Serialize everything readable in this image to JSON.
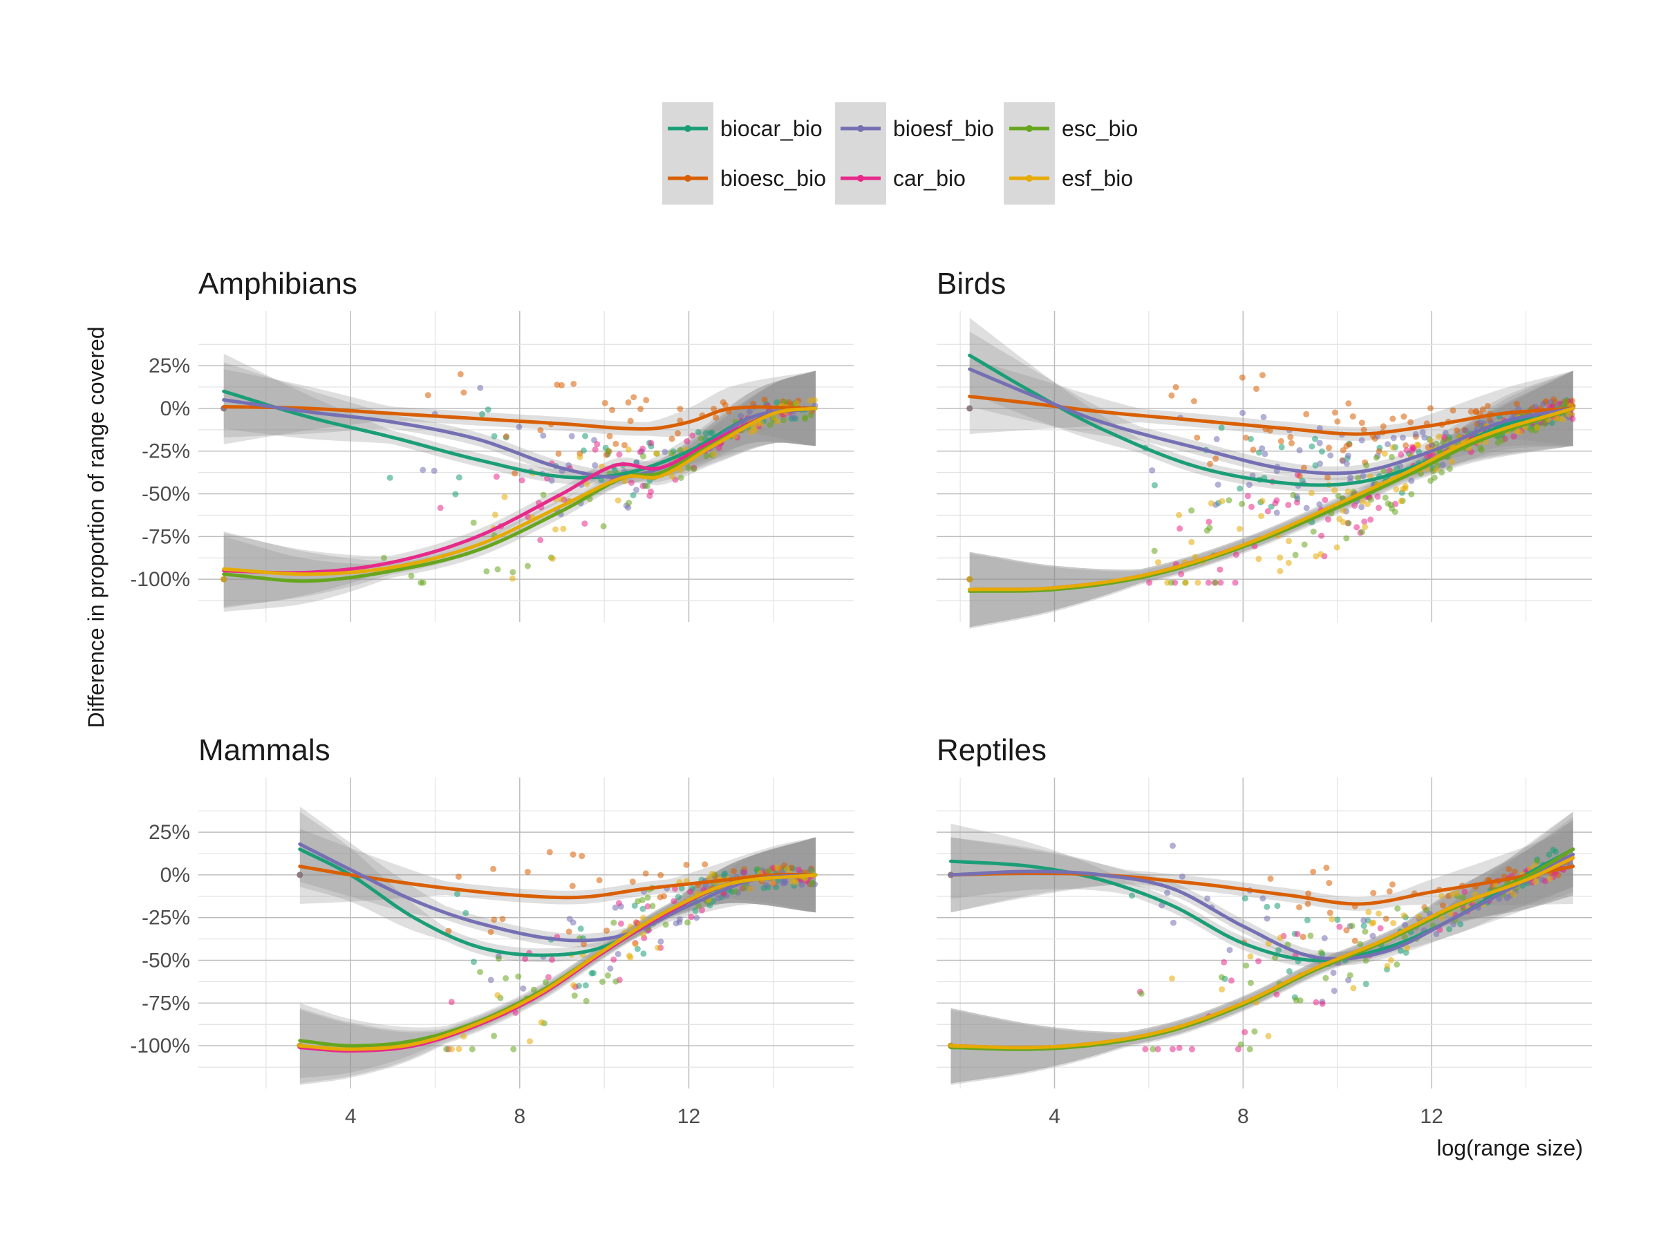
{
  "chart_data": {
    "type": "scatter",
    "ylabel": "Difference in proportion of range covered",
    "xlabel": "log(range size)",
    "x_ticks": [
      4,
      8,
      12
    ],
    "x_tick_labels": [
      "4",
      "8",
      "12"
    ],
    "y_ticks": [
      -100,
      -75,
      -50,
      -25,
      0,
      25
    ],
    "y_tick_labels": [
      "-100%",
      "-75%",
      "-50%",
      "-25%",
      "0%",
      "25%"
    ],
    "legend": {
      "position": "top",
      "entries": [
        {
          "name": "biocar_bio",
          "color": "#1b9e77"
        },
        {
          "name": "bioesc_bio",
          "color": "#d95f02"
        },
        {
          "name": "bioesf_bio",
          "color": "#7570b3"
        },
        {
          "name": "car_bio",
          "color": "#e7298a"
        },
        {
          "name": "esc_bio",
          "color": "#66a61e"
        },
        {
          "name": "esf_bio",
          "color": "#e6ab02"
        }
      ]
    },
    "grid": true,
    "panels": [
      {
        "title": "Amphibians",
        "xlim": [
          0.4,
          15.9
        ],
        "ylim": [
          -125,
          57
        ],
        "series": [
          {
            "name": "biocar_bio",
            "x": [
              1,
              3,
              5,
              7,
              9,
              10.5,
              12,
              13.5,
              15
            ],
            "y": [
              10,
              -5,
              -17,
              -30,
              -40,
              -38,
              -25,
              -5,
              0
            ]
          },
          {
            "name": "bioesc_bio",
            "x": [
              1,
              3,
              5,
              7,
              9,
              11,
              12,
              13,
              15
            ],
            "y": [
              1,
              0,
              -3,
              -6,
              -9,
              -12,
              -8,
              0,
              0
            ]
          },
          {
            "name": "bioesf_bio",
            "x": [
              1,
              3,
              5,
              7,
              9,
              10.5,
              12,
              13.5,
              15
            ],
            "y": [
              5,
              -2,
              -8,
              -18,
              -35,
              -40,
              -28,
              -5,
              0
            ]
          },
          {
            "name": "car_bio",
            "x": [
              1,
              3,
              5,
              7,
              9,
              10.3,
              11.3,
              12.5,
              14,
              15
            ],
            "y": [
              -95,
              -96,
              -90,
              -75,
              -50,
              -33,
              -35,
              -20,
              -3,
              0
            ]
          },
          {
            "name": "esc_bio",
            "x": [
              1,
              3,
              5,
              7,
              9,
              10.5,
              11.3,
              12.5,
              14,
              15
            ],
            "y": [
              -97,
              -101,
              -95,
              -83,
              -60,
              -40,
              -38,
              -22,
              -3,
              0
            ]
          },
          {
            "name": "esf_bio",
            "x": [
              1,
              3,
              5,
              7,
              9,
              10.5,
              11.3,
              12.5,
              14,
              15
            ],
            "y": [
              -94,
              -97,
              -93,
              -80,
              -57,
              -40,
              -40,
              -23,
              -3,
              0
            ]
          }
        ]
      },
      {
        "title": "Birds",
        "xlim": [
          1.5,
          15.4
        ],
        "ylim": [
          -125,
          57
        ],
        "series": [
          {
            "name": "biocar_bio",
            "x": [
              2.2,
              3.5,
              5,
              7,
              9,
              10.5,
              12,
              13.5,
              15
            ],
            "y": [
              31,
              10,
              -12,
              -34,
              -44,
              -43,
              -30,
              -10,
              0
            ]
          },
          {
            "name": "bioesc_bio",
            "x": [
              2.2,
              3.5,
              5,
              7,
              9,
              10.5,
              12,
              13.5,
              15
            ],
            "y": [
              7,
              3,
              -2,
              -7,
              -12,
              -15,
              -10,
              -3,
              0
            ]
          },
          {
            "name": "bioesf_bio",
            "x": [
              2.2,
              3.5,
              5,
              7,
              9,
              10.5,
              12,
              13.5,
              15
            ],
            "y": [
              23,
              8,
              -8,
              -23,
              -36,
              -37,
              -25,
              -8,
              0
            ]
          },
          {
            "name": "car_bio",
            "x": [
              2.2,
              4,
              6,
              8,
              10,
              11.5,
              13,
              15
            ],
            "y": [
              -106,
              -105,
              -97,
              -80,
              -57,
              -38,
              -18,
              0
            ]
          },
          {
            "name": "esc_bio",
            "x": [
              2.2,
              4,
              6,
              8,
              10,
              11.5,
              13,
              15
            ],
            "y": [
              -107,
              -106,
              -98,
              -81,
              -58,
              -39,
              -19,
              0
            ]
          },
          {
            "name": "esf_bio",
            "x": [
              2.2,
              4,
              6,
              8,
              10,
              11.5,
              13,
              15
            ],
            "y": [
              -106,
              -105,
              -97,
              -80,
              -56,
              -37,
              -17,
              0
            ]
          }
        ]
      },
      {
        "title": "Mammals",
        "xlim": [
          0.4,
          15.9
        ],
        "ylim": [
          -125,
          57
        ],
        "series": [
          {
            "name": "biocar_bio",
            "x": [
              2.8,
              4,
              5.5,
              7,
              8.5,
              10,
              11.5,
              13,
              15
            ],
            "y": [
              15,
              0,
              -25,
              -42,
              -47,
              -42,
              -22,
              -5,
              0
            ]
          },
          {
            "name": "bioesc_bio",
            "x": [
              2.8,
              4,
              6,
              8,
              9.5,
              11,
              12.5,
              14,
              15
            ],
            "y": [
              5,
              0,
              -7,
              -12,
              -13,
              -8,
              -4,
              0,
              0
            ]
          },
          {
            "name": "bioesf_bio",
            "x": [
              2.8,
              4,
              5.5,
              7,
              9,
              10.5,
              12,
              13.5,
              15
            ],
            "y": [
              18,
              3,
              -15,
              -28,
              -38,
              -35,
              -18,
              -3,
              0
            ]
          },
          {
            "name": "car_bio",
            "x": [
              2.8,
              4,
              5.5,
              7,
              8.5,
              10,
              11.5,
              13,
              15
            ],
            "y": [
              -101,
              -103,
              -100,
              -88,
              -70,
              -45,
              -22,
              -5,
              0
            ]
          },
          {
            "name": "esc_bio",
            "x": [
              2.8,
              4,
              5.5,
              7,
              8.5,
              10,
              11.5,
              13,
              15
            ],
            "y": [
              -97,
              -100,
              -97,
              -86,
              -68,
              -44,
              -21,
              -5,
              0
            ]
          },
          {
            "name": "esf_bio",
            "x": [
              2.8,
              4,
              5.5,
              7,
              8.5,
              10,
              11.5,
              13,
              15
            ],
            "y": [
              -100,
              -102,
              -99,
              -87,
              -69,
              -44,
              -21,
              -5,
              0
            ]
          }
        ]
      },
      {
        "title": "Reptiles",
        "xlim": [
          1.5,
          15.4
        ],
        "ylim": [
          -125,
          57
        ],
        "series": [
          {
            "name": "biocar_bio",
            "x": [
              1.8,
              3.5,
              5,
              6.5,
              8,
              9.5,
              11,
              12.5,
              14,
              15
            ],
            "y": [
              8,
              5,
              -3,
              -18,
              -40,
              -50,
              -43,
              -25,
              0,
              15
            ]
          },
          {
            "name": "bioesc_bio",
            "x": [
              1.8,
              3.5,
              5,
              7,
              9,
              10.5,
              12,
              13.5,
              15
            ],
            "y": [
              0,
              1,
              0,
              -5,
              -12,
              -17,
              -10,
              -3,
              5
            ]
          },
          {
            "name": "bioesf_bio",
            "x": [
              1.8,
              3.5,
              5,
              6.5,
              8,
              9.5,
              11,
              12.5,
              14,
              15
            ],
            "y": [
              0,
              2,
              0,
              -8,
              -30,
              -48,
              -45,
              -25,
              -3,
              12
            ]
          },
          {
            "name": "car_bio",
            "x": [
              1.8,
              3.5,
              5,
              6.5,
              8,
              9.5,
              11,
              12.5,
              14,
              15
            ],
            "y": [
              -100,
              -101,
              -98,
              -90,
              -75,
              -55,
              -38,
              -18,
              -3,
              10
            ]
          },
          {
            "name": "esc_bio",
            "x": [
              1.8,
              3.5,
              5,
              6.5,
              8,
              9.5,
              11,
              12.5,
              14,
              15
            ],
            "y": [
              -101,
              -102,
              -99,
              -91,
              -76,
              -56,
              -39,
              -19,
              -1,
              15
            ]
          },
          {
            "name": "esf_bio",
            "x": [
              1.8,
              3.5,
              5,
              6.5,
              8,
              9.5,
              11,
              12.5,
              14,
              15
            ],
            "y": [
              -100,
              -101,
              -98,
              -90,
              -75,
              -55,
              -38,
              -18,
              -3,
              10
            ]
          }
        ]
      }
    ]
  }
}
